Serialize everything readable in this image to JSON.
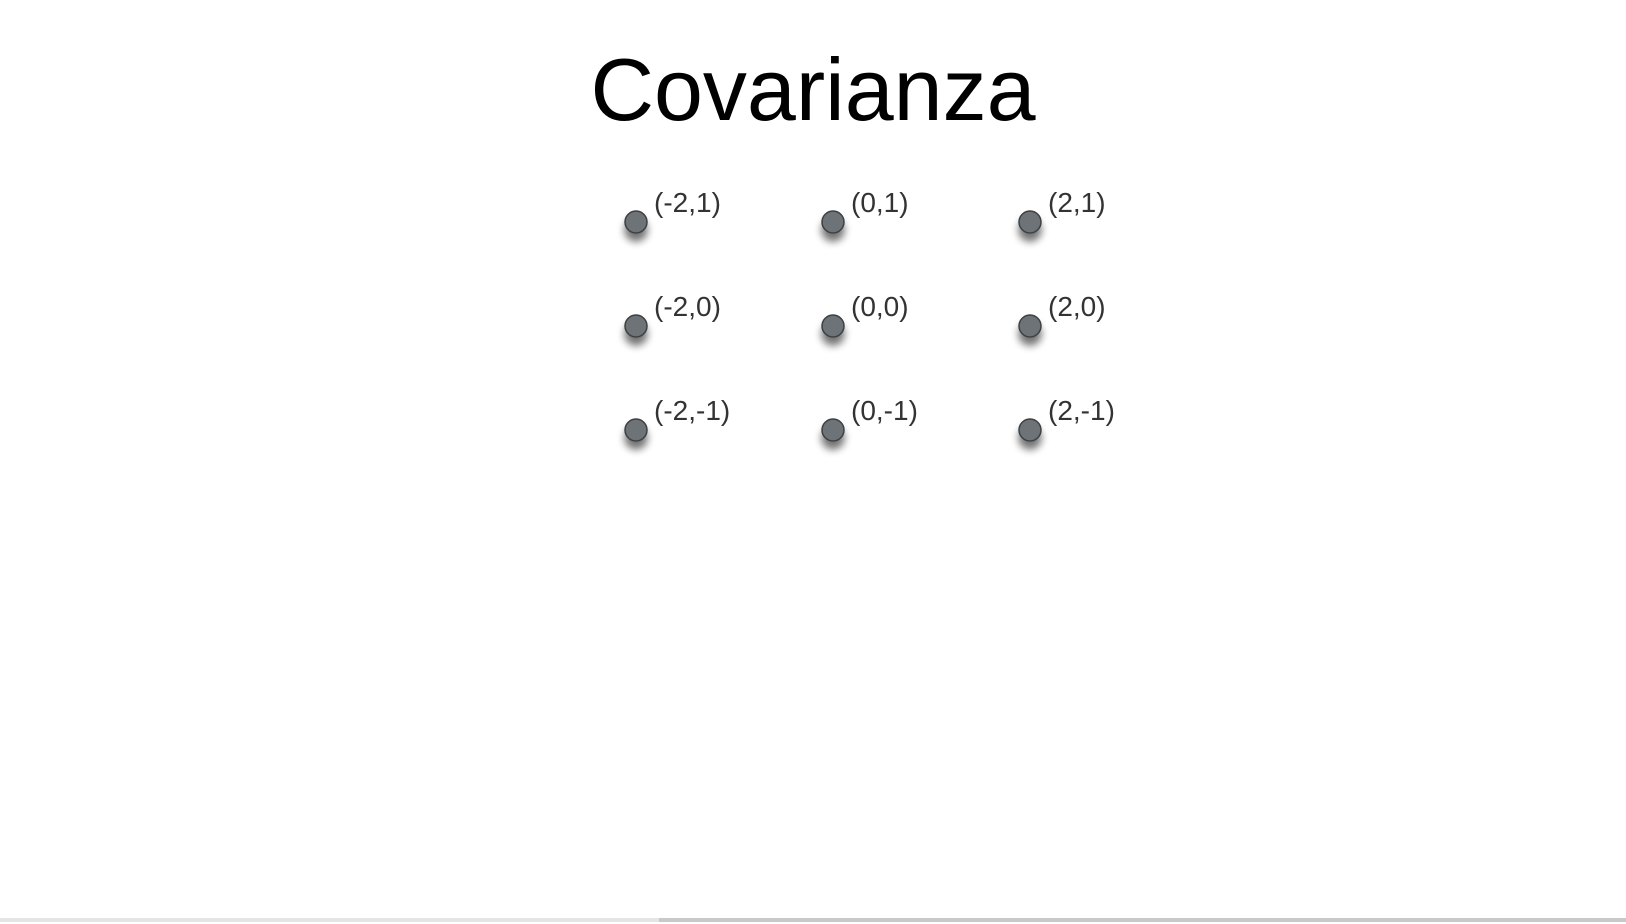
{
  "slide": {
    "title": "Covarianza",
    "progress": 0.405
  },
  "chart_data": {
    "type": "scatter",
    "title": "Covarianza",
    "xlabel": "",
    "ylabel": "",
    "xlim": [
      -2,
      2
    ],
    "ylim": [
      -1,
      1
    ],
    "grid": false,
    "axes_visible": false,
    "colors": {
      "point_fill": "#6e7378",
      "point_stroke": "#3c4043",
      "label": "#333333"
    },
    "points": [
      {
        "x": -2,
        "y": 1,
        "label": "(-2,1)"
      },
      {
        "x": 0,
        "y": 1,
        "label": "(0,1)"
      },
      {
        "x": 2,
        "y": 1,
        "label": "(2,1)"
      },
      {
        "x": -2,
        "y": 0,
        "label": "(-2,0)"
      },
      {
        "x": 0,
        "y": 0,
        "label": "(0,0)"
      },
      {
        "x": 2,
        "y": 0,
        "label": "(2,0)"
      },
      {
        "x": -2,
        "y": -1,
        "label": "(-2,-1)"
      },
      {
        "x": 0,
        "y": -1,
        "label": "(0,-1)"
      },
      {
        "x": 2,
        "y": -1,
        "label": "(2,-1)"
      }
    ]
  }
}
